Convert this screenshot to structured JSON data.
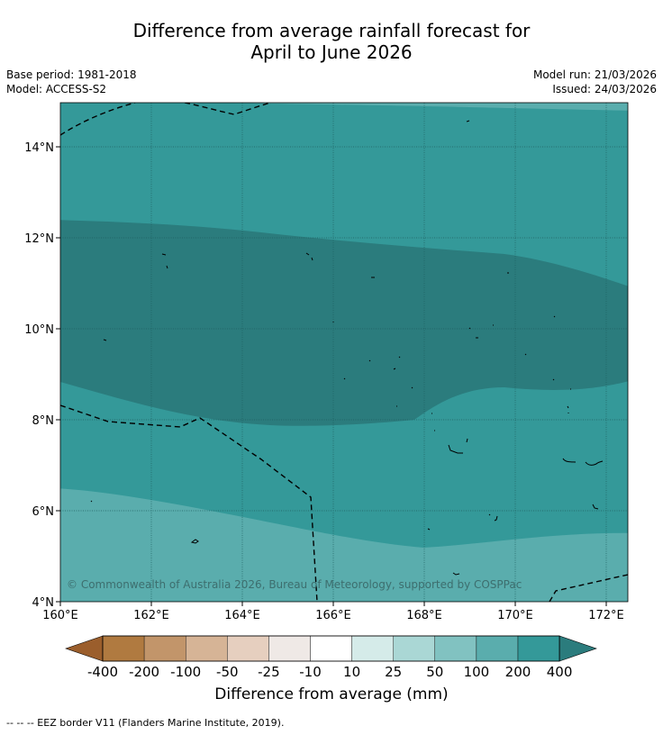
{
  "title": {
    "line1": "Difference from average rainfall forecast for",
    "line2": "April to June 2026"
  },
  "meta": {
    "base_period": "Base period: 1981-2018",
    "model": "Model: ACCESS-S2",
    "model_run": "Model run: 21/03/2026",
    "issued": "Issued: 24/03/2026"
  },
  "copyright": "© Commonwealth of Australia 2026, Bureau of Meteorology, supported by COSPPac",
  "map": {
    "lon_range": [
      160,
      172.5
    ],
    "lat_range": [
      4,
      15
    ],
    "lon_ticks": [
      "160°E",
      "162°E",
      "164°E",
      "166°E",
      "168°E",
      "170°E",
      "172°E"
    ],
    "lat_ticks": [
      "4°N",
      "6°N",
      "8°N",
      "10°N",
      "12°N",
      "14°N"
    ]
  },
  "colorbar": {
    "labels": [
      "-400",
      "-200",
      "-100",
      "-50",
      "-25",
      "-10",
      "10",
      "25",
      "50",
      "100",
      "200",
      "400"
    ],
    "colors": [
      "#9b5e2c",
      "#b07a40",
      "#c2956a",
      "#d6b496",
      "#e6cfbf",
      "#efe9e6",
      "#ffffff",
      "#d5ebe9",
      "#aad7d5",
      "#81c2c1",
      "#5aadad",
      "#349999",
      "#2b7c7d"
    ],
    "title": "Difference from average (mm)"
  },
  "footnote": "-- -- -- EEZ border V11 (Flanders Marine Institute, 2019)."
}
